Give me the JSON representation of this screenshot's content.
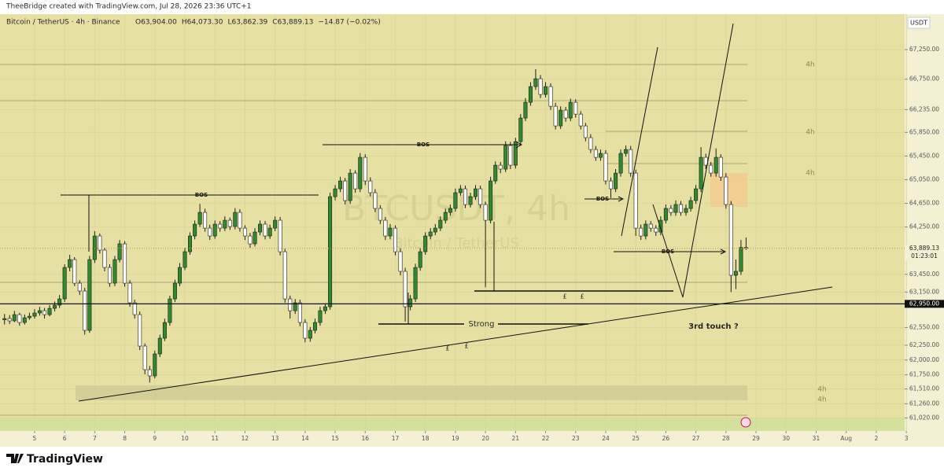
{
  "header": {
    "credit": "TheeBridge created with TradingView.com, Jul 28, 2026 23:36 UTC+1"
  },
  "chart_data": {
    "type": "candlestick",
    "symbol": "Bitcoin / TetherUS · 4h · Binance",
    "ohlc_legend": [
      "O63,904.00",
      "H64,073.30",
      "L63,862.39",
      "C63,889.13",
      "−14.87 (−0.02%)"
    ],
    "watermark": "BTCUSDT, 4h",
    "watermark_sub": "Bitcoin / TetherUS",
    "currency": "USDT",
    "up_color": "#2f8a2f",
    "down_color": "#ffffff",
    "grid": true,
    "xlim": [
      3.85,
      34.05
    ],
    "xticks": [
      5,
      6,
      7,
      8,
      9,
      10,
      11,
      12,
      13,
      14,
      15,
      16,
      17,
      18,
      19,
      20,
      21,
      22,
      23,
      24,
      25,
      26,
      27,
      28,
      29,
      30,
      31,
      {
        "value": 32,
        "label": "Aug"
      },
      {
        "value": 33,
        "label": "2"
      },
      {
        "value": 34,
        "label": "3"
      }
    ],
    "ylim": [
      60800,
      67850
    ],
    "yticks": [
      {
        "value": 67250,
        "label": "67,250.00"
      },
      {
        "value": 66750,
        "label": "66,750.00"
      },
      {
        "value": 66235,
        "label": "66,235.00"
      },
      {
        "value": 65850,
        "label": "65,850.00"
      },
      {
        "value": 65450,
        "label": "65,450.00"
      },
      {
        "value": 65050,
        "label": "65,050.00"
      },
      {
        "value": 64650,
        "label": "64,650.00"
      },
      {
        "value": 64250,
        "label": "64,250.00"
      },
      {
        "value": 63450,
        "label": "63,450.00"
      },
      {
        "value": 63150,
        "label": "63,150.00"
      },
      {
        "value": 62550,
        "label": "62,550.00"
      },
      {
        "value": 62250,
        "label": "62,250.00"
      },
      {
        "value": 62000,
        "label": "62,000.00"
      },
      {
        "value": 61750,
        "label": "61,750.00"
      },
      {
        "value": 61510,
        "label": "61,510.00"
      },
      {
        "value": 61260,
        "label": "61,260.00"
      },
      {
        "value": 61020,
        "label": "61,020.00"
      }
    ],
    "price_tags": [
      {
        "value": 63889.13,
        "label": "63,889.13",
        "countdown": "01:23:01"
      },
      {
        "value": 62950,
        "label": "62,950.00"
      }
    ],
    "annotations": [
      "BOS",
      "BOS",
      "BOS",
      "BOS",
      "Strong",
      "£",
      "£",
      "£",
      "£",
      "3rd touch ?",
      "4h",
      "4h",
      "4h",
      "4h",
      "4h"
    ],
    "x": [
      4,
      4.17,
      4.33,
      4.5,
      4.67,
      4.83,
      5,
      5.17,
      5.33,
      5.5,
      5.67,
      5.83,
      6,
      6.17,
      6.33,
      6.5,
      6.67,
      6.83,
      7,
      7.17,
      7.33,
      7.5,
      7.67,
      7.83,
      8,
      8.17,
      8.33,
      8.5,
      8.67,
      8.83,
      9,
      9.17,
      9.33,
      9.5,
      9.67,
      9.83,
      10,
      10.17,
      10.33,
      10.5,
      10.67,
      10.83,
      11,
      11.17,
      11.33,
      11.5,
      11.67,
      11.83,
      12,
      12.17,
      12.33,
      12.5,
      12.67,
      12.83,
      13,
      13.17,
      13.33,
      13.5,
      13.67,
      13.83,
      14,
      14.17,
      14.33,
      14.5,
      14.67,
      14.83,
      15,
      15.17,
      15.33,
      15.5,
      15.67,
      15.83,
      16,
      16.17,
      16.33,
      16.5,
      16.67,
      16.83,
      17,
      17.17,
      17.33,
      17.5,
      17.67,
      17.83,
      18,
      18.17,
      18.33,
      18.5,
      18.67,
      18.83,
      19,
      19.17,
      19.33,
      19.5,
      19.67,
      19.83,
      20,
      20.17,
      20.33,
      20.5,
      20.67,
      20.83,
      21,
      21.17,
      21.33,
      21.5,
      21.67,
      21.83,
      22,
      22.17,
      22.33,
      22.5,
      22.67,
      22.83,
      23,
      23.17,
      23.33,
      23.5,
      23.67,
      23.83,
      24,
      24.17,
      24.33,
      24.5,
      24.67,
      24.83,
      25,
      25.17,
      25.33,
      25.5,
      25.67,
      25.83,
      26,
      26.17,
      26.33,
      26.5,
      26.67,
      26.83,
      27,
      27.17,
      27.33,
      27.5,
      27.67,
      27.83,
      28,
      28.17,
      28.33,
      28.5,
      28.67
    ],
    "ohlc": [
      [
        62680,
        62780,
        62600,
        62702
      ],
      [
        62702,
        62760,
        62610,
        62662
      ],
      [
        62662,
        62830,
        62640,
        62768
      ],
      [
        62768,
        62800,
        62580,
        62635
      ],
      [
        62635,
        62770,
        62600,
        62715
      ],
      [
        62715,
        62800,
        62680,
        62741
      ],
      [
        62741,
        62860,
        62700,
        62795
      ],
      [
        62795,
        62900,
        62750,
        62835
      ],
      [
        62835,
        62880,
        62700,
        62768
      ],
      [
        62768,
        62930,
        62740,
        62874
      ],
      [
        62874,
        62990,
        62820,
        62928
      ],
      [
        62928,
        63100,
        62880,
        63034
      ],
      [
        63034,
        63620,
        62980,
        63566
      ],
      [
        63566,
        63780,
        63500,
        63699
      ],
      [
        63699,
        63740,
        63250,
        63300
      ],
      [
        63300,
        63350,
        63100,
        63167
      ],
      [
        63167,
        63220,
        62430,
        62502
      ],
      [
        62502,
        63760,
        62460,
        63699
      ],
      [
        63699,
        64180,
        63640,
        64098
      ],
      [
        64098,
        64140,
        63800,
        63859
      ],
      [
        63859,
        63900,
        63500,
        63566
      ],
      [
        63566,
        63620,
        63240,
        63300
      ],
      [
        63300,
        63760,
        63250,
        63699
      ],
      [
        63699,
        64030,
        63650,
        63965
      ],
      [
        63965,
        64010,
        63240,
        63300
      ],
      [
        63300,
        63350,
        62900,
        62968
      ],
      [
        62968,
        63020,
        62700,
        62768
      ],
      [
        62768,
        62820,
        62170,
        62236
      ],
      [
        62236,
        62280,
        61760,
        61837
      ],
      [
        61837,
        61900,
        61620,
        61731
      ],
      [
        61731,
        62160,
        61690,
        62103
      ],
      [
        62103,
        62430,
        62050,
        62369
      ],
      [
        62369,
        62700,
        62320,
        62635
      ],
      [
        62635,
        63090,
        62580,
        63034
      ],
      [
        63034,
        63360,
        62980,
        63300
      ],
      [
        63300,
        63640,
        63250,
        63566
      ],
      [
        63566,
        63900,
        63520,
        63832
      ],
      [
        63832,
        64160,
        63780,
        64098
      ],
      [
        64098,
        64360,
        64040,
        64298
      ],
      [
        64298,
        64640,
        64250,
        64497
      ],
      [
        64497,
        64560,
        64170,
        64231
      ],
      [
        64231,
        64290,
        64030,
        64098
      ],
      [
        64098,
        64360,
        64050,
        64298
      ],
      [
        64298,
        64350,
        64170,
        64231
      ],
      [
        64231,
        64430,
        64180,
        64364
      ],
      [
        64364,
        64410,
        64200,
        64258
      ],
      [
        64258,
        64570,
        64210,
        64497
      ],
      [
        64497,
        64550,
        64170,
        64231
      ],
      [
        64231,
        64280,
        64030,
        64098
      ],
      [
        64098,
        64150,
        63900,
        63965
      ],
      [
        63965,
        64230,
        63920,
        64165
      ],
      [
        64165,
        64360,
        64110,
        64298
      ],
      [
        64298,
        64350,
        64040,
        64098
      ],
      [
        64098,
        64290,
        64050,
        64231
      ],
      [
        64231,
        64430,
        64180,
        64364
      ],
      [
        64364,
        64420,
        63770,
        63832
      ],
      [
        63832,
        63880,
        62970,
        63034
      ],
      [
        63034,
        63090,
        62700,
        62834
      ],
      [
        62834,
        63030,
        62780,
        62968
      ],
      [
        62968,
        63020,
        62570,
        62635
      ],
      [
        62635,
        62690,
        62300,
        62369
      ],
      [
        62369,
        62560,
        62310,
        62502
      ],
      [
        62502,
        62700,
        62450,
        62635
      ],
      [
        62635,
        62900,
        62580,
        62834
      ],
      [
        62834,
        62960,
        62780,
        62901
      ],
      [
        62901,
        64830,
        62850,
        64763
      ],
      [
        64763,
        64960,
        64700,
        64896
      ],
      [
        64896,
        65100,
        64840,
        65029
      ],
      [
        65029,
        65080,
        64630,
        64697
      ],
      [
        64697,
        65230,
        64640,
        65162
      ],
      [
        65162,
        65210,
        64830,
        64896
      ],
      [
        64896,
        65500,
        64840,
        65428
      ],
      [
        65428,
        65480,
        64960,
        65029
      ],
      [
        65029,
        65090,
        64770,
        64830
      ],
      [
        64830,
        64890,
        64500,
        64564
      ],
      [
        64564,
        64620,
        64300,
        64364
      ],
      [
        64364,
        64420,
        64030,
        64098
      ],
      [
        64098,
        64300,
        64040,
        64231
      ],
      [
        64231,
        64280,
        63770,
        63832
      ],
      [
        63832,
        63890,
        63430,
        63500
      ],
      [
        63500,
        63560,
        62650,
        62901
      ],
      [
        62901,
        63100,
        62840,
        63034
      ],
      [
        63034,
        63630,
        62980,
        63566
      ],
      [
        63566,
        63900,
        63510,
        63832
      ],
      [
        63832,
        64160,
        63780,
        64098
      ],
      [
        64098,
        64230,
        64040,
        64165
      ],
      [
        64165,
        64300,
        64110,
        64231
      ],
      [
        64231,
        64430,
        64180,
        64364
      ],
      [
        64364,
        64560,
        64310,
        64497
      ],
      [
        64497,
        64630,
        64440,
        64564
      ],
      [
        64564,
        64900,
        64510,
        64830
      ],
      [
        64830,
        64960,
        64780,
        64896
      ],
      [
        64896,
        64950,
        64570,
        64630
      ],
      [
        64630,
        64830,
        64580,
        64763
      ],
      [
        64763,
        64960,
        64710,
        64896
      ],
      [
        64896,
        64950,
        64570,
        64630
      ],
      [
        64630,
        64680,
        63230,
        64364
      ],
      [
        64364,
        65100,
        64310,
        65029
      ],
      [
        65029,
        65360,
        64980,
        65295
      ],
      [
        65295,
        65350,
        65160,
        65229
      ],
      [
        65229,
        65700,
        65180,
        65628
      ],
      [
        65628,
        65690,
        65230,
        65295
      ],
      [
        65295,
        65760,
        65240,
        65694
      ],
      [
        65694,
        66160,
        65640,
        66093
      ],
      [
        66093,
        66430,
        66040,
        66359
      ],
      [
        66359,
        66700,
        66300,
        66625
      ],
      [
        66625,
        66920,
        66570,
        66758
      ],
      [
        66758,
        66820,
        66430,
        66492
      ],
      [
        66492,
        66700,
        66440,
        66625
      ],
      [
        66625,
        66680,
        66230,
        66292
      ],
      [
        66292,
        66350,
        65900,
        65960
      ],
      [
        65960,
        66290,
        65910,
        66226
      ],
      [
        66226,
        66280,
        66030,
        66093
      ],
      [
        66093,
        66420,
        66040,
        66359
      ],
      [
        66359,
        66410,
        66100,
        66159
      ],
      [
        66159,
        66210,
        65900,
        65960
      ],
      [
        65960,
        66010,
        65700,
        65761
      ],
      [
        65761,
        65820,
        65500,
        65561
      ],
      [
        65561,
        65620,
        65370,
        65428
      ],
      [
        65428,
        65560,
        65370,
        65495
      ],
      [
        65495,
        65550,
        64970,
        65029
      ],
      [
        65029,
        65090,
        64740,
        64896
      ],
      [
        64896,
        65230,
        64840,
        65162
      ],
      [
        65162,
        65560,
        65100,
        65495
      ],
      [
        65495,
        65630,
        65440,
        65561
      ],
      [
        65561,
        65620,
        65100,
        65162
      ],
      [
        65162,
        65220,
        64100,
        64231
      ],
      [
        64231,
        64290,
        64030,
        64098
      ],
      [
        64098,
        64360,
        64040,
        64298
      ],
      [
        64298,
        64350,
        64170,
        64231
      ],
      [
        64231,
        64280,
        64100,
        64165
      ],
      [
        64165,
        64430,
        64110,
        64364
      ],
      [
        64364,
        64630,
        64310,
        64564
      ],
      [
        64564,
        64620,
        64440,
        64497
      ],
      [
        64497,
        64700,
        64440,
        64630
      ],
      [
        64630,
        64690,
        64440,
        64497
      ],
      [
        64497,
        64630,
        64440,
        64564
      ],
      [
        64564,
        64760,
        64510,
        64697
      ],
      [
        64697,
        64960,
        64640,
        64896
      ],
      [
        64896,
        65600,
        64840,
        65428
      ],
      [
        65428,
        65490,
        65230,
        65295
      ],
      [
        65295,
        65350,
        65100,
        65162
      ],
      [
        65162,
        65580,
        65100,
        65428
      ],
      [
        65428,
        65480,
        65030,
        65095
      ],
      [
        65095,
        65160,
        64560,
        64630
      ],
      [
        64630,
        64690,
        63150,
        63433
      ],
      [
        63433,
        63700,
        63200,
        63500
      ],
      [
        63500,
        64030,
        63440,
        63904
      ],
      [
        63904,
        64073.3,
        63862.39,
        63889.13
      ]
    ]
  },
  "footer": {
    "brand": "TradingView"
  }
}
